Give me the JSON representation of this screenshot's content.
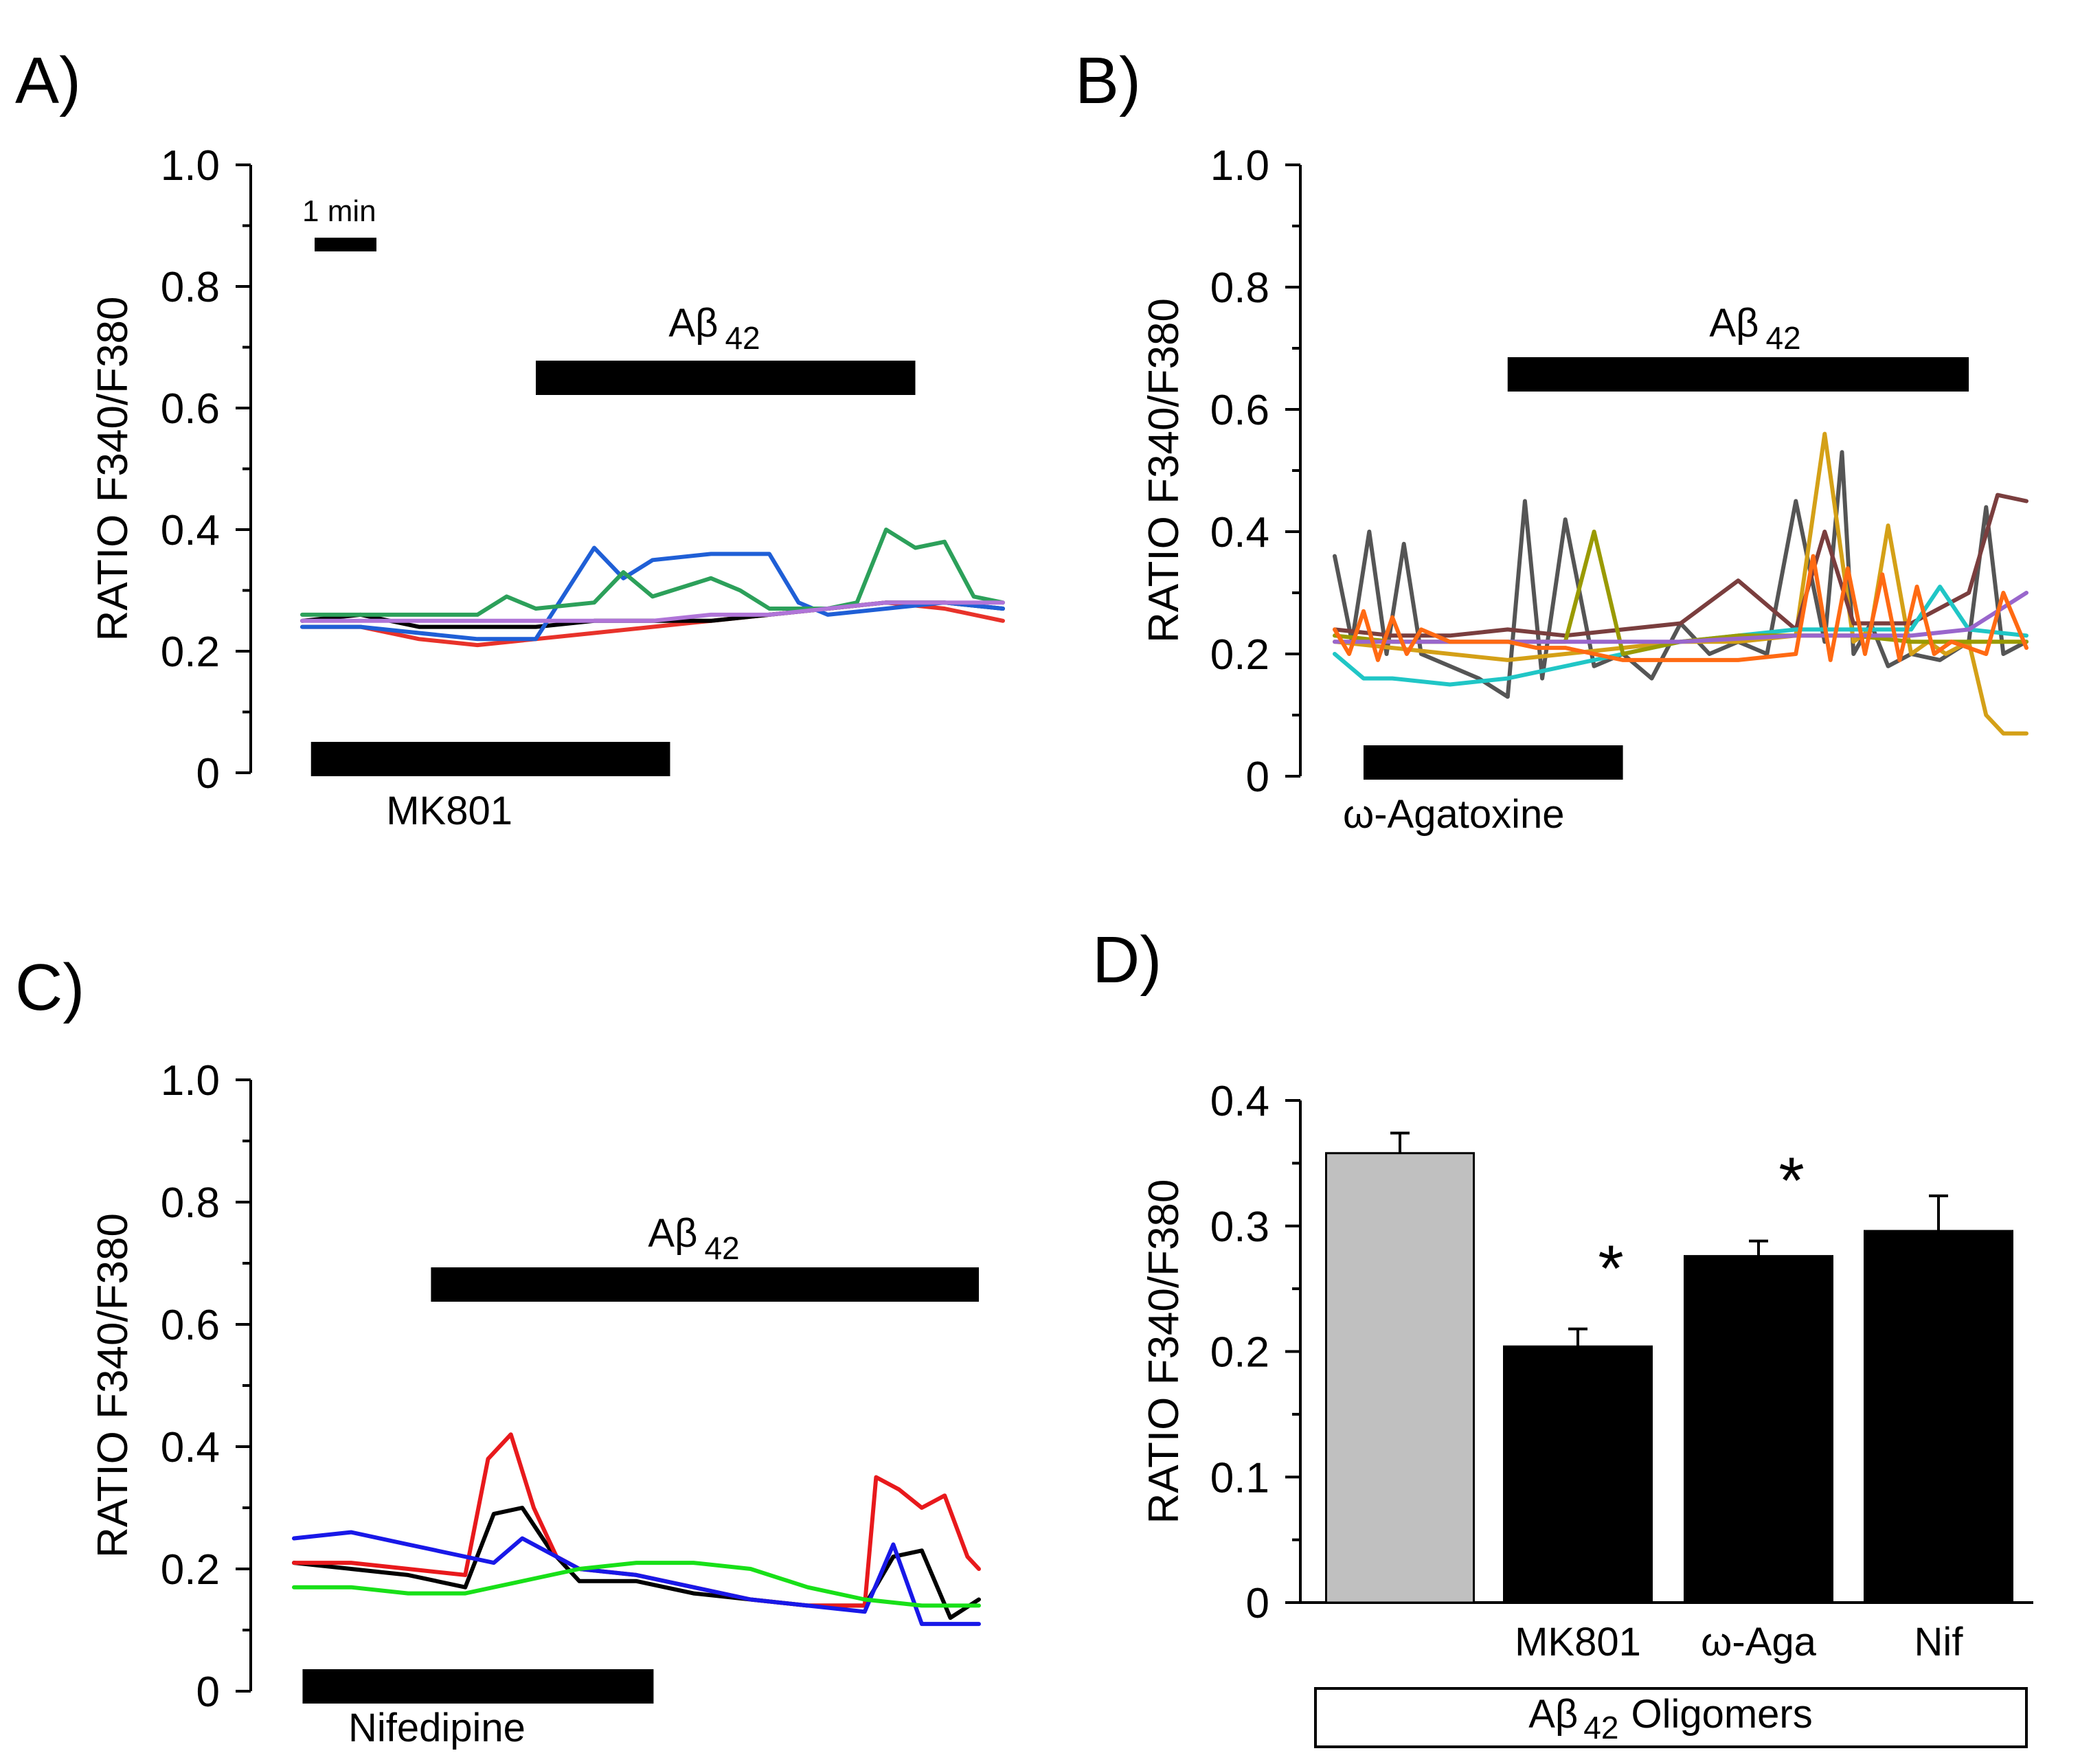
{
  "figure": {
    "panels": {
      "a": {
        "label": "A)"
      },
      "b": {
        "label": "B)"
      },
      "c": {
        "label": "C)"
      },
      "d": {
        "label": "D)"
      }
    },
    "scale_bar": {
      "label": "1 min"
    },
    "abeta": {
      "main": "Aβ",
      "sub": "42"
    }
  },
  "chart_data": [
    {
      "id": "A",
      "type": "line",
      "title": "A)",
      "ylabel": "RATIO F340/F380",
      "ylim": [
        0,
        1.0
      ],
      "yticks": [
        "0",
        "0.2",
        "0.4",
        "0.6",
        "0.8",
        "1.0"
      ],
      "x_unit": "min",
      "xlim": [
        0,
        12
      ],
      "treatment": {
        "label": "MK801",
        "start": 0.15,
        "end": 6.3
      },
      "abeta_bar": {
        "start": 4.0,
        "end": 10.5
      },
      "series": [
        {
          "name": "red",
          "color": "#e8322a",
          "x": [
            0,
            1,
            2,
            3,
            4,
            5,
            6,
            7,
            8,
            9,
            10,
            11,
            12
          ],
          "values": [
            0.24,
            0.24,
            0.22,
            0.21,
            0.22,
            0.23,
            0.24,
            0.25,
            0.26,
            0.27,
            0.28,
            0.27,
            0.25
          ]
        },
        {
          "name": "black",
          "color": "#000000",
          "x": [
            0,
            1,
            2,
            3,
            4,
            5,
            6,
            7,
            8,
            9,
            10,
            11,
            12
          ],
          "values": [
            0.25,
            0.26,
            0.24,
            0.24,
            0.24,
            0.25,
            0.25,
            0.25,
            0.26,
            0.27,
            0.28,
            0.28,
            0.27
          ]
        },
        {
          "name": "blue",
          "color": "#1f5fd6",
          "x": [
            0,
            1,
            2,
            3,
            4,
            5,
            5.5,
            6,
            7,
            8,
            8.5,
            9,
            10,
            11,
            12
          ],
          "values": [
            0.24,
            0.24,
            0.23,
            0.22,
            0.22,
            0.37,
            0.32,
            0.35,
            0.36,
            0.36,
            0.28,
            0.26,
            0.27,
            0.28,
            0.27
          ]
        },
        {
          "name": "green",
          "color": "#2ca05a",
          "x": [
            0,
            1,
            2,
            3,
            3.5,
            4,
            5,
            5.5,
            6,
            7,
            7.5,
            8,
            9,
            9.5,
            10,
            10.5,
            11,
            11.5,
            12
          ],
          "values": [
            0.26,
            0.26,
            0.26,
            0.26,
            0.29,
            0.27,
            0.28,
            0.33,
            0.29,
            0.32,
            0.3,
            0.27,
            0.27,
            0.28,
            0.4,
            0.37,
            0.38,
            0.29,
            0.28
          ]
        },
        {
          "name": "violet",
          "color": "#b075d8",
          "x": [
            0,
            1,
            2,
            3,
            4,
            5,
            6,
            7,
            8,
            9,
            10,
            11,
            12
          ],
          "values": [
            0.25,
            0.25,
            0.25,
            0.25,
            0.25,
            0.25,
            0.25,
            0.26,
            0.26,
            0.27,
            0.28,
            0.28,
            0.28
          ]
        }
      ]
    },
    {
      "id": "B",
      "type": "line",
      "title": "B)",
      "ylabel": "RATIO F340/F380",
      "ylim": [
        0,
        1.0
      ],
      "yticks": [
        "0",
        "0.2",
        "0.4",
        "0.6",
        "0.8",
        "1.0"
      ],
      "x_unit": "min",
      "xlim": [
        0,
        12
      ],
      "treatment": {
        "label": "ω-Agatoxine",
        "start": 0.5,
        "end": 5.0
      },
      "abeta_bar": {
        "start": 3.0,
        "end": 11.0
      },
      "series": [
        {
          "name": "dark gray",
          "color": "#555555",
          "x": [
            0,
            0.3,
            0.6,
            0.9,
            1.2,
            1.5,
            2,
            2.5,
            3,
            3.3,
            3.6,
            4,
            4.5,
            5,
            5.5,
            6,
            6.5,
            7,
            7.5,
            8,
            8.5,
            8.8,
            9,
            9.3,
            9.6,
            10,
            10.5,
            11,
            11.3,
            11.6,
            12
          ],
          "values": [
            0.36,
            0.22,
            0.4,
            0.2,
            0.38,
            0.2,
            0.18,
            0.16,
            0.13,
            0.45,
            0.16,
            0.42,
            0.18,
            0.2,
            0.16,
            0.25,
            0.2,
            0.22,
            0.2,
            0.45,
            0.22,
            0.53,
            0.2,
            0.25,
            0.18,
            0.2,
            0.19,
            0.22,
            0.44,
            0.2,
            0.22
          ]
        },
        {
          "name": "gold",
          "color": "#d4a017",
          "x": [
            0,
            1,
            2,
            3,
            4,
            5,
            6,
            7,
            8,
            8.5,
            9,
            9.3,
            9.6,
            10,
            10.3,
            10.6,
            11,
            11.3,
            11.6,
            12
          ],
          "values": [
            0.22,
            0.21,
            0.2,
            0.19,
            0.2,
            0.21,
            0.22,
            0.22,
            0.23,
            0.56,
            0.22,
            0.24,
            0.41,
            0.2,
            0.22,
            0.2,
            0.22,
            0.1,
            0.07,
            0.07
          ]
        },
        {
          "name": "brown",
          "color": "#7a3e3e",
          "x": [
            0,
            1,
            2,
            3,
            4,
            5,
            6,
            7,
            8,
            8.5,
            9,
            10,
            11,
            11.5,
            12
          ],
          "values": [
            0.24,
            0.23,
            0.23,
            0.24,
            0.23,
            0.24,
            0.25,
            0.32,
            0.24,
            0.4,
            0.25,
            0.25,
            0.3,
            0.46,
            0.45
          ]
        },
        {
          "name": "cyan",
          "color": "#20c6c6",
          "x": [
            0,
            0.5,
            1,
            2,
            3,
            4,
            5,
            6,
            7,
            8,
            9,
            10,
            10.5,
            11,
            12
          ],
          "values": [
            0.2,
            0.16,
            0.16,
            0.15,
            0.16,
            0.18,
            0.2,
            0.22,
            0.23,
            0.24,
            0.24,
            0.24,
            0.31,
            0.24,
            0.23
          ]
        },
        {
          "name": "olive",
          "color": "#9a9a00",
          "x": [
            0,
            1,
            2,
            3,
            4,
            4.5,
            5,
            6,
            7,
            8,
            9,
            10,
            11,
            12
          ],
          "values": [
            0.23,
            0.22,
            0.22,
            0.22,
            0.22,
            0.4,
            0.2,
            0.22,
            0.23,
            0.23,
            0.23,
            0.22,
            0.22,
            0.22
          ]
        },
        {
          "name": "purple",
          "color": "#9966cc",
          "x": [
            0,
            2,
            4,
            6,
            8,
            10,
            11,
            12
          ],
          "values": [
            0.22,
            0.22,
            0.22,
            0.22,
            0.23,
            0.23,
            0.24,
            0.3
          ]
        },
        {
          "name": "orange",
          "color": "#ff6a13",
          "x": [
            0,
            0.25,
            0.5,
            0.75,
            1,
            1.25,
            1.5,
            2,
            2.5,
            3,
            3.5,
            4,
            4.5,
            5,
            6,
            7,
            8,
            8.3,
            8.6,
            8.9,
            9.2,
            9.5,
            9.8,
            10.1,
            10.4,
            10.7,
            11,
            11.3,
            11.6,
            12
          ],
          "values": [
            0.24,
            0.2,
            0.27,
            0.19,
            0.26,
            0.2,
            0.24,
            0.22,
            0.22,
            0.22,
            0.21,
            0.21,
            0.2,
            0.19,
            0.19,
            0.19,
            0.2,
            0.36,
            0.19,
            0.34,
            0.2,
            0.33,
            0.19,
            0.31,
            0.2,
            0.22,
            0.21,
            0.2,
            0.3,
            0.21
          ]
        }
      ]
    },
    {
      "id": "C",
      "type": "line",
      "title": "C)",
      "ylabel": "RATIO F340/F380",
      "ylim": [
        0,
        1.0
      ],
      "yticks": [
        "0",
        "0.2",
        "0.4",
        "0.6",
        "0.8",
        "1.0"
      ],
      "x_unit": "min",
      "xlim": [
        0,
        12
      ],
      "treatment": {
        "label": "Nifedipine",
        "start": 0.15,
        "end": 6.3
      },
      "abeta_bar": {
        "start": 2.4,
        "end": 12.0
      },
      "series": [
        {
          "name": "black",
          "color": "#000000",
          "x": [
            0,
            1,
            2,
            3,
            3.5,
            4,
            4.5,
            5,
            6,
            7,
            8,
            9,
            10,
            10.5,
            11,
            11.5,
            12
          ],
          "values": [
            0.21,
            0.2,
            0.19,
            0.17,
            0.29,
            0.3,
            0.23,
            0.18,
            0.18,
            0.16,
            0.15,
            0.14,
            0.14,
            0.22,
            0.23,
            0.12,
            0.15
          ]
        },
        {
          "name": "red",
          "color": "#e8191c",
          "x": [
            0,
            1,
            2,
            3,
            3.4,
            3.8,
            4.2,
            4.6,
            5,
            6,
            7,
            8,
            9,
            10,
            10.2,
            10.6,
            11,
            11.4,
            11.8,
            12
          ],
          "values": [
            0.21,
            0.21,
            0.2,
            0.19,
            0.38,
            0.42,
            0.3,
            0.22,
            0.2,
            0.19,
            0.17,
            0.15,
            0.14,
            0.14,
            0.35,
            0.33,
            0.3,
            0.32,
            0.22,
            0.2
          ]
        },
        {
          "name": "blue",
          "color": "#1818e8",
          "x": [
            0,
            1,
            2,
            3,
            3.5,
            4,
            5,
            6,
            7,
            8,
            9,
            10,
            10.5,
            11,
            11.5,
            12
          ],
          "values": [
            0.25,
            0.26,
            0.24,
            0.22,
            0.21,
            0.25,
            0.2,
            0.19,
            0.17,
            0.15,
            0.14,
            0.13,
            0.24,
            0.11,
            0.11,
            0.11
          ]
        },
        {
          "name": "green",
          "color": "#18e018",
          "x": [
            0,
            1,
            2,
            3,
            4,
            5,
            6,
            7,
            8,
            9,
            10,
            11,
            12
          ],
          "values": [
            0.17,
            0.17,
            0.16,
            0.16,
            0.18,
            0.2,
            0.21,
            0.21,
            0.2,
            0.17,
            0.15,
            0.14,
            0.14
          ]
        }
      ]
    },
    {
      "id": "D",
      "type": "bar",
      "title": "D)",
      "ylabel": "RATIO F340/F380",
      "ylim": [
        0,
        0.4
      ],
      "yticks": [
        "0",
        "0.1",
        "0.2",
        "0.3",
        "0.4"
      ],
      "categories": [
        "",
        "MK801",
        "ω-Aga",
        "Nif"
      ],
      "values": [
        0.358,
        0.204,
        0.276,
        0.296
      ],
      "errors": [
        0.016,
        0.014,
        0.012,
        0.028
      ],
      "colors": [
        "#c0c0c0",
        "#000000",
        "#000000",
        "#000000"
      ],
      "significance": [
        "",
        "*",
        "*",
        ""
      ],
      "group_label": {
        "main": "Aβ",
        "sub": "42",
        "rest": "Oligomers"
      }
    }
  ]
}
